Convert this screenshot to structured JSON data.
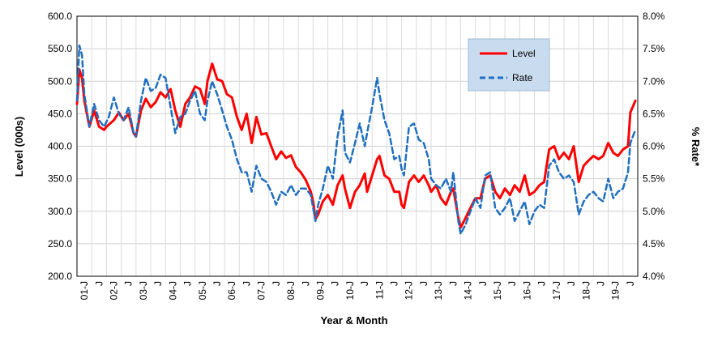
{
  "chart_data": {
    "type": "line",
    "title": "",
    "xlabel": "Year & Month",
    "ylabel_left": "Level (000s)",
    "ylabel_right": "% Rate*",
    "ylim_left": [
      200,
      600
    ],
    "ylim_right": [
      4.0,
      8.0
    ],
    "y_ticks_left": [
      "200.0",
      "250.0",
      "300.0",
      "350.0",
      "400.0",
      "450.0",
      "500.0",
      "550.0",
      "600.0"
    ],
    "y_ticks_right": [
      "4.0%",
      "4.5%",
      "5.0%",
      "5.5%",
      "6.0%",
      "6.5%",
      "7.0%",
      "7.5%",
      "8.0%"
    ],
    "x_tick_labels": [
      "01-J",
      "J",
      "02-J",
      "J",
      "03-J",
      "J",
      "04-J",
      "J",
      "05-J",
      "J",
      "06-J",
      "J",
      "07-J",
      "J",
      "08-J",
      "J",
      "09-J",
      "J",
      "10-J",
      "J",
      "11-J",
      "J",
      "12-J",
      "J",
      "13-J",
      "J",
      "14-J",
      "J",
      "15-J",
      "J",
      "16-J",
      "J",
      "17-J",
      "J",
      "18-J",
      "J",
      "19-J",
      "J"
    ],
    "grid": true,
    "legend_position": "top-right",
    "series": [
      {
        "name": "Level",
        "axis": "left",
        "color": "#ff0000",
        "style": "solid",
        "values": [
          [
            2001.0,
            465
          ],
          [
            2001.08,
            518
          ],
          [
            2001.17,
            505
          ],
          [
            2001.25,
            470
          ],
          [
            2001.42,
            430
          ],
          [
            2001.58,
            455
          ],
          [
            2001.75,
            430
          ],
          [
            2001.92,
            425
          ],
          [
            2002.0,
            430
          ],
          [
            2002.25,
            440
          ],
          [
            2002.42,
            452
          ],
          [
            2002.58,
            440
          ],
          [
            2002.75,
            450
          ],
          [
            2002.92,
            420
          ],
          [
            2003.0,
            415
          ],
          [
            2003.17,
            455
          ],
          [
            2003.33,
            473
          ],
          [
            2003.5,
            460
          ],
          [
            2003.67,
            468
          ],
          [
            2003.83,
            483
          ],
          [
            2004.0,
            475
          ],
          [
            2004.17,
            488
          ],
          [
            2004.33,
            455
          ],
          [
            2004.5,
            430
          ],
          [
            2004.67,
            465
          ],
          [
            2004.83,
            475
          ],
          [
            2005.0,
            492
          ],
          [
            2005.17,
            488
          ],
          [
            2005.33,
            465
          ],
          [
            2005.42,
            500
          ],
          [
            2005.58,
            527
          ],
          [
            2005.75,
            503
          ],
          [
            2005.92,
            500
          ],
          [
            2006.08,
            480
          ],
          [
            2006.25,
            475
          ],
          [
            2006.42,
            445
          ],
          [
            2006.58,
            425
          ],
          [
            2006.75,
            450
          ],
          [
            2006.92,
            405
          ],
          [
            2007.08,
            445
          ],
          [
            2007.25,
            418
          ],
          [
            2007.42,
            420
          ],
          [
            2007.58,
            400
          ],
          [
            2007.75,
            380
          ],
          [
            2007.92,
            392
          ],
          [
            2008.08,
            382
          ],
          [
            2008.25,
            386
          ],
          [
            2008.42,
            368
          ],
          [
            2008.58,
            360
          ],
          [
            2008.75,
            348
          ],
          [
            2008.92,
            330
          ],
          [
            2009.0,
            315
          ],
          [
            2009.08,
            288
          ],
          [
            2009.17,
            295
          ],
          [
            2009.33,
            315
          ],
          [
            2009.5,
            325
          ],
          [
            2009.67,
            310
          ],
          [
            2009.83,
            340
          ],
          [
            2010.0,
            355
          ],
          [
            2010.08,
            335
          ],
          [
            2010.25,
            305
          ],
          [
            2010.42,
            330
          ],
          [
            2010.58,
            340
          ],
          [
            2010.75,
            358
          ],
          [
            2010.83,
            330
          ],
          [
            2011.0,
            355
          ],
          [
            2011.17,
            380
          ],
          [
            2011.25,
            385
          ],
          [
            2011.42,
            355
          ],
          [
            2011.58,
            350
          ],
          [
            2011.75,
            330
          ],
          [
            2011.92,
            330
          ],
          [
            2012.0,
            310
          ],
          [
            2012.08,
            305
          ],
          [
            2012.25,
            345
          ],
          [
            2012.42,
            355
          ],
          [
            2012.58,
            345
          ],
          [
            2012.75,
            355
          ],
          [
            2012.92,
            340
          ],
          [
            2013.0,
            330
          ],
          [
            2013.17,
            340
          ],
          [
            2013.33,
            320
          ],
          [
            2013.5,
            310
          ],
          [
            2013.67,
            330
          ],
          [
            2013.75,
            335
          ],
          [
            2013.92,
            290
          ],
          [
            2014.0,
            275
          ],
          [
            2014.17,
            290
          ],
          [
            2014.33,
            305
          ],
          [
            2014.5,
            320
          ],
          [
            2014.67,
            320
          ],
          [
            2014.83,
            350
          ],
          [
            2015.0,
            355
          ],
          [
            2015.17,
            330
          ],
          [
            2015.33,
            320
          ],
          [
            2015.5,
            335
          ],
          [
            2015.67,
            325
          ],
          [
            2015.83,
            340
          ],
          [
            2016.0,
            330
          ],
          [
            2016.17,
            355
          ],
          [
            2016.33,
            325
          ],
          [
            2016.5,
            330
          ],
          [
            2016.67,
            340
          ],
          [
            2016.83,
            345
          ],
          [
            2017.0,
            395
          ],
          [
            2017.17,
            400
          ],
          [
            2017.33,
            380
          ],
          [
            2017.5,
            390
          ],
          [
            2017.67,
            380
          ],
          [
            2017.83,
            400
          ],
          [
            2018.0,
            345
          ],
          [
            2018.17,
            370
          ],
          [
            2018.33,
            378
          ],
          [
            2018.5,
            385
          ],
          [
            2018.67,
            380
          ],
          [
            2018.83,
            385
          ],
          [
            2019.0,
            405
          ],
          [
            2019.17,
            390
          ],
          [
            2019.33,
            385
          ],
          [
            2019.5,
            395
          ],
          [
            2019.67,
            400
          ],
          [
            2019.75,
            452
          ],
          [
            2019.92,
            470
          ]
        ]
      },
      {
        "name": "Rate",
        "axis": "right",
        "color": "#1f6fc0",
        "style": "dashed",
        "values": [
          [
            2001.0,
            6.7
          ],
          [
            2001.08,
            7.55
          ],
          [
            2001.17,
            7.4
          ],
          [
            2001.25,
            6.8
          ],
          [
            2001.42,
            6.3
          ],
          [
            2001.58,
            6.65
          ],
          [
            2001.75,
            6.4
          ],
          [
            2001.92,
            6.3
          ],
          [
            2002.08,
            6.45
          ],
          [
            2002.25,
            6.75
          ],
          [
            2002.42,
            6.5
          ],
          [
            2002.58,
            6.4
          ],
          [
            2002.75,
            6.6
          ],
          [
            2002.92,
            6.2
          ],
          [
            2003.0,
            6.15
          ],
          [
            2003.17,
            6.7
          ],
          [
            2003.33,
            7.05
          ],
          [
            2003.5,
            6.85
          ],
          [
            2003.67,
            6.9
          ],
          [
            2003.83,
            7.1
          ],
          [
            2004.0,
            7.05
          ],
          [
            2004.17,
            6.6
          ],
          [
            2004.33,
            6.2
          ],
          [
            2004.5,
            6.45
          ],
          [
            2004.67,
            6.5
          ],
          [
            2004.83,
            6.7
          ],
          [
            2005.0,
            6.85
          ],
          [
            2005.17,
            6.5
          ],
          [
            2005.33,
            6.4
          ],
          [
            2005.42,
            6.7
          ],
          [
            2005.58,
            7.0
          ],
          [
            2005.75,
            6.8
          ],
          [
            2005.92,
            6.55
          ],
          [
            2006.08,
            6.3
          ],
          [
            2006.25,
            6.1
          ],
          [
            2006.42,
            5.8
          ],
          [
            2006.58,
            5.6
          ],
          [
            2006.75,
            5.6
          ],
          [
            2006.92,
            5.3
          ],
          [
            2007.08,
            5.7
          ],
          [
            2007.25,
            5.5
          ],
          [
            2007.42,
            5.45
          ],
          [
            2007.58,
            5.3
          ],
          [
            2007.75,
            5.1
          ],
          [
            2007.92,
            5.3
          ],
          [
            2008.08,
            5.25
          ],
          [
            2008.25,
            5.4
          ],
          [
            2008.42,
            5.25
          ],
          [
            2008.58,
            5.35
          ],
          [
            2008.75,
            5.35
          ],
          [
            2008.92,
            5.25
          ],
          [
            2009.0,
            5.05
          ],
          [
            2009.08,
            4.85
          ],
          [
            2009.17,
            5.1
          ],
          [
            2009.33,
            5.35
          ],
          [
            2009.5,
            5.7
          ],
          [
            2009.67,
            5.5
          ],
          [
            2009.83,
            6.15
          ],
          [
            2010.0,
            6.55
          ],
          [
            2010.08,
            5.9
          ],
          [
            2010.25,
            5.75
          ],
          [
            2010.42,
            6.05
          ],
          [
            2010.58,
            6.35
          ],
          [
            2010.75,
            6.0
          ],
          [
            2010.83,
            6.2
          ],
          [
            2011.0,
            6.6
          ],
          [
            2011.17,
            7.05
          ],
          [
            2011.25,
            6.8
          ],
          [
            2011.42,
            6.4
          ],
          [
            2011.58,
            6.2
          ],
          [
            2011.75,
            5.8
          ],
          [
            2011.92,
            5.85
          ],
          [
            2012.0,
            5.65
          ],
          [
            2012.08,
            5.55
          ],
          [
            2012.25,
            6.3
          ],
          [
            2012.42,
            6.35
          ],
          [
            2012.58,
            6.1
          ],
          [
            2012.75,
            6.05
          ],
          [
            2012.92,
            5.8
          ],
          [
            2013.0,
            5.5
          ],
          [
            2013.17,
            5.4
          ],
          [
            2013.33,
            5.35
          ],
          [
            2013.5,
            5.5
          ],
          [
            2013.67,
            5.3
          ],
          [
            2013.75,
            5.6
          ],
          [
            2013.92,
            4.85
          ],
          [
            2014.0,
            4.65
          ],
          [
            2014.17,
            4.8
          ],
          [
            2014.33,
            5.0
          ],
          [
            2014.5,
            5.2
          ],
          [
            2014.67,
            5.05
          ],
          [
            2014.83,
            5.55
          ],
          [
            2015.0,
            5.6
          ],
          [
            2015.17,
            5.05
          ],
          [
            2015.33,
            4.95
          ],
          [
            2015.5,
            5.05
          ],
          [
            2015.67,
            5.2
          ],
          [
            2015.83,
            4.85
          ],
          [
            2016.0,
            5.0
          ],
          [
            2016.17,
            5.15
          ],
          [
            2016.33,
            4.8
          ],
          [
            2016.5,
            5.0
          ],
          [
            2016.67,
            5.1
          ],
          [
            2016.83,
            5.05
          ],
          [
            2017.0,
            5.7
          ],
          [
            2017.17,
            5.8
          ],
          [
            2017.33,
            5.6
          ],
          [
            2017.5,
            5.5
          ],
          [
            2017.67,
            5.55
          ],
          [
            2017.83,
            5.45
          ],
          [
            2018.0,
            4.95
          ],
          [
            2018.17,
            5.15
          ],
          [
            2018.33,
            5.25
          ],
          [
            2018.5,
            5.3
          ],
          [
            2018.67,
            5.2
          ],
          [
            2018.83,
            5.15
          ],
          [
            2019.0,
            5.5
          ],
          [
            2019.17,
            5.2
          ],
          [
            2019.33,
            5.3
          ],
          [
            2019.5,
            5.35
          ],
          [
            2019.67,
            5.6
          ],
          [
            2019.75,
            6.05
          ],
          [
            2019.92,
            6.25
          ]
        ]
      }
    ]
  }
}
